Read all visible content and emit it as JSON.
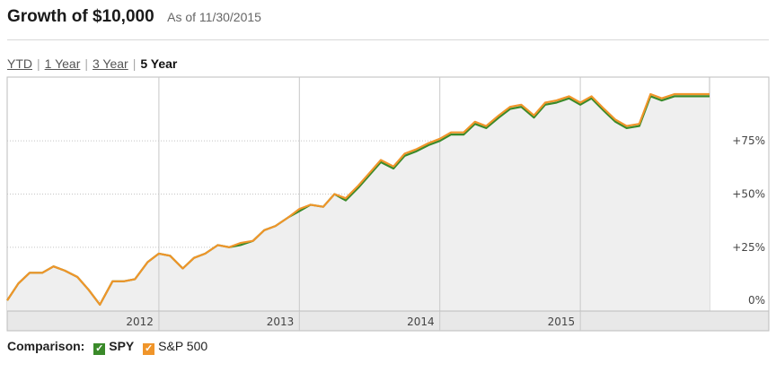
{
  "header": {
    "title": "Growth of $10,000",
    "as_of": "As of 11/30/2015"
  },
  "tabs": [
    {
      "label": "YTD",
      "active": false
    },
    {
      "label": "1 Year",
      "active": false
    },
    {
      "label": "3 Year",
      "active": false
    },
    {
      "label": "5 Year",
      "active": true
    }
  ],
  "legend": {
    "label": "Comparison:",
    "check_glyph": "✓",
    "items": [
      {
        "name": "SPY",
        "color": "#3a8a2a"
      },
      {
        "name": "S&P 500",
        "color": "#f0952a"
      }
    ]
  },
  "chart_data": {
    "type": "line",
    "grid": true,
    "x_range": [
      2010.92,
      2015.92
    ],
    "x_ticks": [
      {
        "x": 2012,
        "label": "2012"
      },
      {
        "x": 2013,
        "label": "2013"
      },
      {
        "x": 2014,
        "label": "2014"
      },
      {
        "x": 2015,
        "label": "2015"
      }
    ],
    "y_range": [
      -5,
      105
    ],
    "y_ticks": [
      {
        "y": 0,
        "label": "0%"
      },
      {
        "y": 25,
        "label": "+25%"
      },
      {
        "y": 50,
        "label": "+50%"
      },
      {
        "y": 75,
        "label": "+75%"
      }
    ],
    "series": [
      {
        "name": "SPY",
        "color": "#3a8a2a",
        "x": [
          2010.92,
          2011.0,
          2011.08,
          2011.17,
          2011.25,
          2011.33,
          2011.42,
          2011.5,
          2011.58,
          2011.67,
          2011.75,
          2011.83,
          2011.92,
          2012.0,
          2012.08,
          2012.17,
          2012.25,
          2012.33,
          2012.42,
          2012.5,
          2012.58,
          2012.67,
          2012.75,
          2012.83,
          2012.92,
          2013.0,
          2013.08,
          2013.17,
          2013.25,
          2013.33,
          2013.42,
          2013.5,
          2013.58,
          2013.67,
          2013.75,
          2013.83,
          2013.92,
          2014.0,
          2014.08,
          2014.17,
          2014.25,
          2014.33,
          2014.42,
          2014.5,
          2014.58,
          2014.67,
          2014.75,
          2014.83,
          2014.92,
          2015.0,
          2015.08,
          2015.17,
          2015.25,
          2015.33,
          2015.42,
          2015.5,
          2015.58,
          2015.67,
          2015.75,
          2015.83,
          2015.92
        ],
        "values": [
          0,
          8,
          13,
          13,
          16,
          14,
          11,
          5,
          -2,
          9,
          9,
          10,
          18,
          22,
          21,
          15,
          20,
          22,
          26,
          25,
          26,
          28,
          33,
          35,
          39,
          42,
          45,
          44,
          50,
          47,
          53,
          59,
          65,
          62,
          68,
          70,
          73,
          75,
          78,
          78,
          83,
          81,
          86,
          90,
          91,
          86,
          92,
          93,
          95,
          92,
          95,
          89,
          84,
          81,
          82,
          96,
          94,
          96,
          96,
          96,
          96
        ]
      },
      {
        "name": "S&P 500",
        "color": "#f0952a",
        "x": [
          2010.92,
          2011.0,
          2011.08,
          2011.17,
          2011.25,
          2011.33,
          2011.42,
          2011.5,
          2011.58,
          2011.67,
          2011.75,
          2011.83,
          2011.92,
          2012.0,
          2012.08,
          2012.17,
          2012.25,
          2012.33,
          2012.42,
          2012.5,
          2012.58,
          2012.67,
          2012.75,
          2012.83,
          2012.92,
          2013.0,
          2013.08,
          2013.17,
          2013.25,
          2013.33,
          2013.42,
          2013.5,
          2013.58,
          2013.67,
          2013.75,
          2013.83,
          2013.92,
          2014.0,
          2014.08,
          2014.17,
          2014.25,
          2014.33,
          2014.42,
          2014.5,
          2014.58,
          2014.67,
          2014.75,
          2014.83,
          2014.92,
          2015.0,
          2015.08,
          2015.17,
          2015.25,
          2015.33,
          2015.42,
          2015.5,
          2015.58,
          2015.67,
          2015.75,
          2015.83,
          2015.92
        ],
        "values": [
          0,
          8,
          13,
          13,
          16,
          14,
          11,
          5,
          -2,
          9,
          9,
          10,
          18,
          22,
          21,
          15,
          20,
          22,
          26,
          25,
          27,
          28,
          33,
          35,
          39,
          43,
          45,
          44,
          50,
          48,
          54,
          60,
          66,
          63,
          69,
          71,
          74,
          76,
          79,
          79,
          84,
          82,
          87,
          91,
          92,
          87,
          93,
          94,
          96,
          93,
          96,
          90,
          85,
          82,
          83,
          97,
          95,
          97,
          97,
          97,
          97
        ]
      }
    ]
  }
}
